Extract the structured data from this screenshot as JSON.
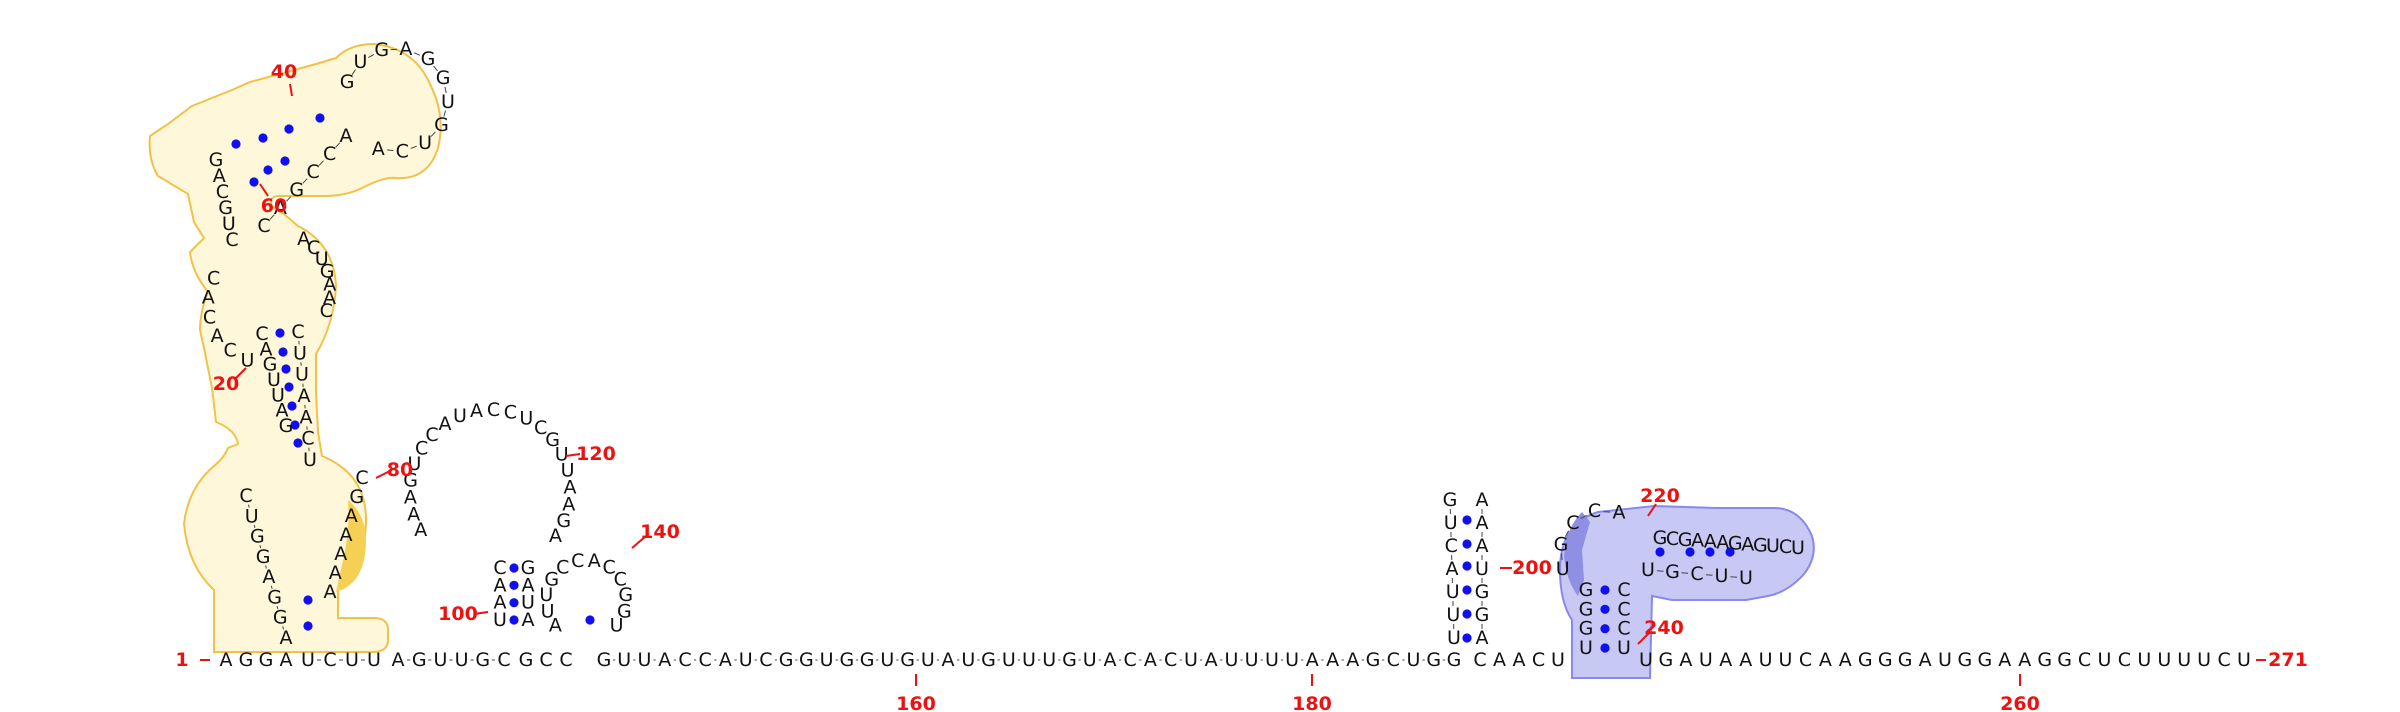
{
  "colors": {
    "nucleotide": "#111111",
    "numbering": "#ee1111",
    "pair_dot": "#1010ee",
    "highlight_gold_stroke": "#f0c24a",
    "highlight_gold_fill": "#fff7da",
    "highlight_gold_dark": "#f6cf55",
    "highlight_blue_stroke": "#8888ee",
    "highlight_blue_fill": "#c8c8f4",
    "highlight_blue_dark": "#8f8fe4"
  },
  "sequence": {
    "bottom_strand_1": "AGGA",
    "bottom_strand_2": "UCUU",
    "bottom_strand_3": "AGUUGC",
    "bottom_strand_4": "GCC",
    "bottom_strand_5": "GUUACCAUCGGUGGUGUAUGUUUGUACACUAUUUUAAAGCUGG",
    "bottom_strand_6": "CAACU",
    "bottom_strand_7": "UGAUAAUUCAAGGGAUGGAAGGCUCUUUUCU",
    "hairpin1_left_low": "AGGAGGUC",
    "hairpin1_right_low": "AAAAAGC",
    "hairpin1_stem_left": "GAUUGAC",
    "hairpin1_stem_right": "UCAAUUC",
    "hairpin1_internal_left": "UCACAC",
    "hairpin1_internal_right": "CAAGUCA",
    "hairpin1_upper_left": "CUGCAG",
    "hairpin1_upper_right": "CAGCCA",
    "hairpin1_top_loop": "GUGAGGUGUCA",
    "hairpin2_stem_left": "UAAC",
    "hairpin2_stem_right": "AUAG",
    "hairpin2_loop": "AAAGUCCAUACCUCGUUAAGA",
    "hairpin3": "AUUGCCACCGGU",
    "hairpin4_left": "UUUACUG",
    "hairpin4_right": "AAAUGGA",
    "hairpin5_stem_left": "UGGG",
    "hairpin5_stem_right": "UCCC",
    "hairpin5_inner_left": "UGCCA",
    "hairpin5_inner_right": "UGCUU",
    "hairpin5_top": "GCGAAAGAGUCU"
  },
  "numbering": {
    "n1": "1",
    "n20": "20",
    "n40": "40",
    "n60": "60",
    "n80": "80",
    "n100": "100",
    "n120": "120",
    "n140": "140",
    "n160": "160",
    "n180": "180",
    "n200": "200",
    "n220": "220",
    "n240": "240",
    "n260": "260",
    "n271": "271"
  }
}
